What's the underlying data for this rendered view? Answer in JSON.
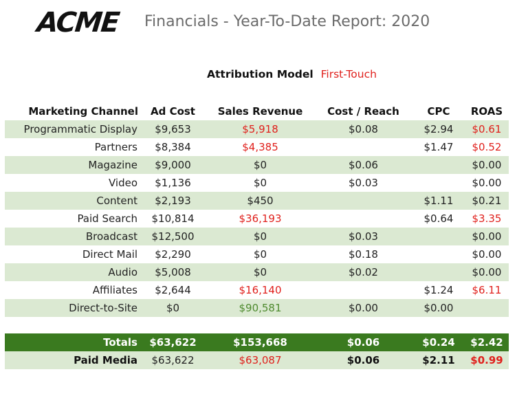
{
  "header": {
    "logo_text": "ACME",
    "report_title": "Financials - Year-To-Date Report: 2020"
  },
  "attribution": {
    "label": "Attribution Model",
    "value": "First-Touch"
  },
  "colors": {
    "accent_red": "#e0201c",
    "positive_green": "#4e8a2e",
    "totals_bg": "#3a7a1f",
    "row_shade": "#dbe9d2"
  },
  "table": {
    "columns": [
      "Marketing Channel",
      "Ad Cost",
      "Sales Revenue",
      "Cost / Reach",
      "CPC",
      "ROAS"
    ],
    "rows": [
      {
        "channel": "Programmatic Display",
        "ad_cost": "$9,653",
        "sales_revenue": "$5,918",
        "cost_reach": "$0.08",
        "cpc": "$2.94",
        "roas": "$0.61"
      },
      {
        "channel": "Partners",
        "ad_cost": "$8,384",
        "sales_revenue": "$4,385",
        "cost_reach": "",
        "cpc": "$1.47",
        "roas": "$0.52"
      },
      {
        "channel": "Magazine",
        "ad_cost": "$9,000",
        "sales_revenue": "$0",
        "cost_reach": "$0.06",
        "cpc": "",
        "roas": "$0.00"
      },
      {
        "channel": "Video",
        "ad_cost": "$1,136",
        "sales_revenue": "$0",
        "cost_reach": "$0.03",
        "cpc": "",
        "roas": "$0.00"
      },
      {
        "channel": "Content",
        "ad_cost": "$2,193",
        "sales_revenue": "$450",
        "cost_reach": "",
        "cpc": "$1.11",
        "roas": "$0.21"
      },
      {
        "channel": "Paid Search",
        "ad_cost": "$10,814",
        "sales_revenue": "$36,193",
        "cost_reach": "",
        "cpc": "$0.64",
        "roas": "$3.35"
      },
      {
        "channel": "Broadcast",
        "ad_cost": "$12,500",
        "sales_revenue": "$0",
        "cost_reach": "$0.03",
        "cpc": "",
        "roas": "$0.00"
      },
      {
        "channel": "Direct Mail",
        "ad_cost": "$2,290",
        "sales_revenue": "$0",
        "cost_reach": "$0.18",
        "cpc": "",
        "roas": "$0.00"
      },
      {
        "channel": "Audio",
        "ad_cost": "$5,008",
        "sales_revenue": "$0",
        "cost_reach": "$0.02",
        "cpc": "",
        "roas": "$0.00"
      },
      {
        "channel": "Affiliates",
        "ad_cost": "$2,644",
        "sales_revenue": "$16,140",
        "cost_reach": "",
        "cpc": "$1.24",
        "roas": "$6.11"
      },
      {
        "channel": "Direct-to-Site",
        "ad_cost": "$0",
        "sales_revenue": "$90,581",
        "cost_reach": "$0.00",
        "cpc": "$0.00",
        "roas": ""
      }
    ],
    "totals": {
      "label": "Totals",
      "ad_cost": "$63,622",
      "sales_revenue": "$153,668",
      "cost_reach": "$0.06",
      "cpc": "$0.24",
      "roas": "$2.42"
    },
    "paid_media": {
      "label": "Paid Media",
      "ad_cost": "$63,622",
      "sales_revenue": "$63,087",
      "cost_reach": "$0.06",
      "cpc": "$2.11",
      "roas": "$0.99"
    }
  }
}
